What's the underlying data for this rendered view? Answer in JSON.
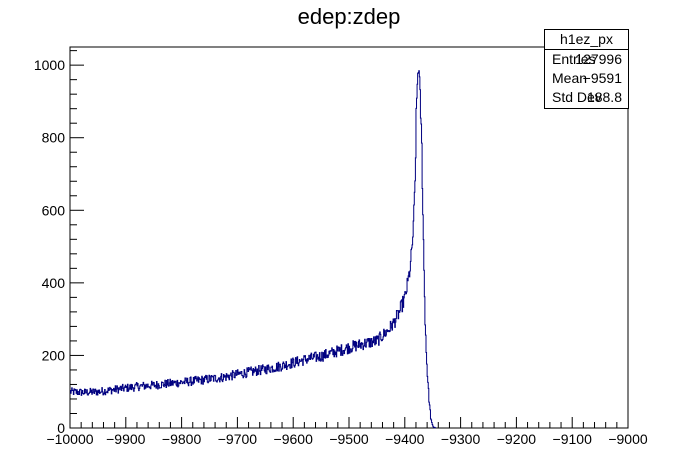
{
  "chart_data": {
    "type": "histogram",
    "title": "edep:zdep",
    "xlim": [
      -10000,
      -9000
    ],
    "ylim": [
      0,
      1050
    ],
    "x_ticks": [
      -10000,
      -9900,
      -9800,
      -9700,
      -9600,
      -9500,
      -9400,
      -9300,
      -9200,
      -9100,
      -9000
    ],
    "x_tick_labels": [
      "−10000",
      "−9900",
      "−9800",
      "−9700",
      "−9600",
      "−9500",
      "−9400",
      "−9300",
      "−9200",
      "−9100",
      "−9000"
    ],
    "y_ticks": [
      0,
      200,
      400,
      600,
      800,
      1000
    ],
    "y_tick_labels": [
      "0",
      "200",
      "400",
      "600",
      "800",
      "1000"
    ],
    "series": [
      {
        "color": "#000080",
        "x": [
          -10000,
          -9975,
          -9950,
          -9925,
          -9900,
          -9875,
          -9850,
          -9825,
          -9800,
          -9775,
          -9750,
          -9725,
          -9700,
          -9675,
          -9650,
          -9625,
          -9600,
          -9575,
          -9550,
          -9525,
          -9500,
          -9475,
          -9450,
          -9440,
          -9430,
          -9420,
          -9410,
          -9400,
          -9395,
          -9390,
          -9385,
          -9382,
          -9380,
          -9378,
          -9376,
          -9374,
          -9372,
          -9370,
          -9368,
          -9366,
          -9364,
          -9362,
          -9360,
          -9358,
          -9356,
          -9354,
          -9352,
          -9350,
          -9345
        ],
        "y": [
          100,
          98,
          100,
          105,
          110,
          115,
          118,
          122,
          126,
          130,
          135,
          140,
          148,
          155,
          162,
          170,
          180,
          190,
          198,
          210,
          222,
          232,
          240,
          255,
          270,
          290,
          320,
          360,
          400,
          450,
          550,
          680,
          850,
          950,
          1005,
          940,
          870,
          770,
          600,
          430,
          300,
          210,
          150,
          100,
          60,
          30,
          12,
          4,
          0
        ]
      }
    ],
    "stats_box": {
      "name": "h1ez_px",
      "entries_label": "Entries",
      "entries_value": "127996",
      "mean_label": "Mean",
      "mean_value": "−9591",
      "stddev_label": "Std Dev",
      "stddev_value": "188.8"
    }
  }
}
